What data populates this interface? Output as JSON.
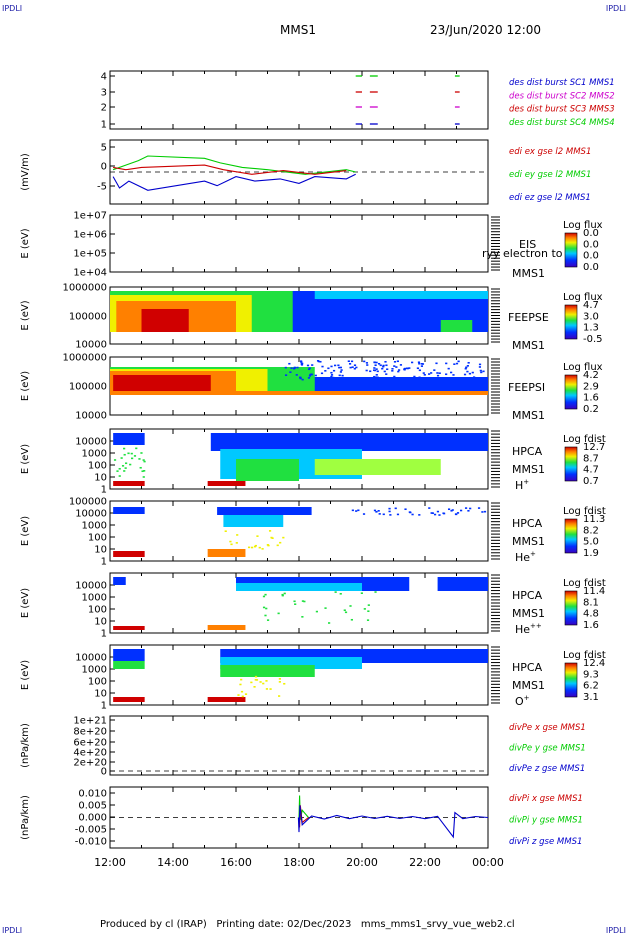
{
  "header": {
    "corner_label": "IPDLI",
    "spacecraft": "MMS1",
    "datetime": "23/Jun/2020 12:00"
  },
  "footer": {
    "produced_by": "Produced by cl (IRAP)",
    "printing_date": "Printing date: 02/Dec/2023",
    "filename": "mms_mms1_srvy_vue_web2.cl"
  },
  "chart_data": {
    "type": "multi-panel time series",
    "x_ticks": [
      "12:00",
      "14:00",
      "16:00",
      "18:00",
      "20:00",
      "22:00",
      "00:00"
    ],
    "x_range_hours": [
      12,
      24
    ],
    "panels": [
      {
        "id": "burst",
        "type": "scatter",
        "yticks": [
          "4",
          "3",
          "2",
          "1"
        ],
        "ylim": [
          0.5,
          4.5
        ],
        "legend": [
          {
            "label": "des dist burst SC1 MMS1",
            "color": "#0000cc"
          },
          {
            "label": "des dist burst SC2 MMS2",
            "color": "#cc00cc"
          },
          {
            "label": "des dist burst SC3 MMS3",
            "color": "#cc0000"
          },
          {
            "label": "des dist burst SC4 MMS4",
            "color": "#00cc00"
          }
        ],
        "segments": [
          {
            "level": 4,
            "t": [
              19.8,
              20.0
            ],
            "color": "#00cc00"
          },
          {
            "level": 4,
            "t": [
              20.25,
              20.5
            ],
            "color": "#00cc00"
          },
          {
            "level": 4,
            "t": [
              22.95,
              23.1
            ],
            "color": "#00cc00"
          },
          {
            "level": 3,
            "t": [
              19.8,
              20.0
            ],
            "color": "#cc0000"
          },
          {
            "level": 3,
            "t": [
              20.25,
              20.5
            ],
            "color": "#cc0000"
          },
          {
            "level": 3,
            "t": [
              22.95,
              23.1
            ],
            "color": "#cc0000"
          },
          {
            "level": 2,
            "t": [
              19.8,
              20.0
            ],
            "color": "#cc00cc"
          },
          {
            "level": 2,
            "t": [
              20.25,
              20.5
            ],
            "color": "#cc00cc"
          },
          {
            "level": 2,
            "t": [
              22.95,
              23.1
            ],
            "color": "#cc00cc"
          },
          {
            "level": 1,
            "t": [
              19.8,
              20.0
            ],
            "color": "#0000cc"
          },
          {
            "level": 1,
            "t": [
              20.25,
              20.5
            ],
            "color": "#0000cc"
          },
          {
            "level": 1,
            "t": [
              22.95,
              23.1
            ],
            "color": "#0000cc"
          }
        ]
      },
      {
        "id": "edi",
        "type": "line",
        "ylabel": "(mV/m)",
        "yticks": [
          "5",
          "0",
          "-5"
        ],
        "ylim": [
          -7,
          7
        ],
        "legend": [
          {
            "label": "edi ex gse l2 MMS1",
            "color": "#cc0000"
          },
          {
            "label": "edi ey gse l2 MMS1",
            "color": "#00cc00"
          },
          {
            "label": "edi ez gse l2 MMS1",
            "color": "#0000cc"
          }
        ],
        "series": [
          {
            "color": "#00cc00",
            "points": [
              [
                12.1,
                0.5
              ],
              [
                12.5,
                1.5
              ],
              [
                12.9,
                2.5
              ],
              [
                13.2,
                3.5
              ],
              [
                15.0,
                3.0
              ],
              [
                15.5,
                2.0
              ],
              [
                16.2,
                1.0
              ],
              [
                17.0,
                0.5
              ],
              [
                18.2,
                -0.5
              ],
              [
                19.5,
                0.5
              ],
              [
                19.8,
                0.0
              ]
            ]
          },
          {
            "color": "#cc0000",
            "points": [
              [
                12.1,
                1.0
              ],
              [
                12.5,
                0.5
              ],
              [
                13.0,
                1.0
              ],
              [
                15.0,
                1.5
              ],
              [
                15.6,
                0.5
              ],
              [
                16.5,
                -0.5
              ],
              [
                17.5,
                0.3
              ],
              [
                18.5,
                -0.5
              ],
              [
                19.5,
                0.3
              ]
            ]
          },
          {
            "color": "#0000cc",
            "points": [
              [
                12.1,
                -1.0
              ],
              [
                12.3,
                -3.5
              ],
              [
                12.6,
                -2.0
              ],
              [
                13.2,
                -4.0
              ],
              [
                15.0,
                -2.0
              ],
              [
                15.4,
                -3.0
              ],
              [
                16.0,
                -1.0
              ],
              [
                16.6,
                -2.0
              ],
              [
                17.4,
                -1.5
              ],
              [
                18.0,
                -2.5
              ],
              [
                18.5,
                -1.0
              ],
              [
                19.5,
                -1.5
              ],
              [
                19.8,
                -0.5
              ]
            ]
          }
        ]
      },
      {
        "id": "eis",
        "type": "heatmap",
        "ylabel": "E (eV)",
        "yticks": [
          "1e+07",
          "1e+06",
          "1e+05",
          "1e+04"
        ],
        "instrument": "EIS",
        "product": "ryy electron to",
        "sc": "MMS1",
        "cbar_title": "Log flux",
        "cbar_ticks": [
          "0.0",
          "0.0",
          "0.0",
          "0.0"
        ],
        "empty": true
      },
      {
        "id": "feepse",
        "type": "heatmap",
        "ylabel": "E (eV)",
        "yticks": [
          "1000000",
          "100000",
          "10000"
        ],
        "instrument": "FEEPSE",
        "sc": "MMS1",
        "cbar_title": "Log flux",
        "cbar_ticks": [
          "4.7",
          "3.0",
          "1.3",
          "-0.5"
        ]
      },
      {
        "id": "feepsi",
        "type": "heatmap",
        "ylabel": "E (eV)",
        "yticks": [
          "1000000",
          "100000",
          "10000"
        ],
        "instrument": "FEEPSI",
        "sc": "MMS1",
        "cbar_title": "Log flux",
        "cbar_ticks": [
          "4.2",
          "2.9",
          "1.6",
          "0.2"
        ]
      },
      {
        "id": "hpca_h",
        "type": "heatmap",
        "ylabel": "E (eV)",
        "yticks": [
          "10000",
          "1000",
          "100",
          "10",
          "1"
        ],
        "instrument": "HPCA",
        "sc": "MMS1",
        "species": "H",
        "charge": "+",
        "cbar_title": "Log fdist",
        "cbar_ticks": [
          "12.7",
          "8.7",
          "4.7",
          "0.7"
        ]
      },
      {
        "id": "hpca_he",
        "type": "heatmap",
        "ylabel": "E (eV)",
        "yticks": [
          "100000",
          "10000",
          "1000",
          "100",
          "10",
          "1"
        ],
        "instrument": "HPCA",
        "sc": "MMS1",
        "species": "He",
        "charge": "+",
        "cbar_title": "Log fdist",
        "cbar_ticks": [
          "11.3",
          "8.2",
          "5.0",
          "1.9"
        ]
      },
      {
        "id": "hpca_he2",
        "type": "heatmap",
        "ylabel": "E (eV)",
        "yticks": [
          "10000",
          "1000",
          "100",
          "10",
          "1"
        ],
        "instrument": "HPCA",
        "sc": "MMS1",
        "species": "He",
        "charge": "++",
        "cbar_title": "Log fdist",
        "cbar_ticks": [
          "11.4",
          "8.1",
          "4.8",
          "1.6"
        ]
      },
      {
        "id": "hpca_o",
        "type": "heatmap",
        "ylabel": "E (eV)",
        "yticks": [
          "10000",
          "1000",
          "100",
          "10",
          "1"
        ],
        "instrument": "HPCA",
        "sc": "MMS1",
        "species": "O",
        "charge": "+",
        "cbar_title": "Log fdist",
        "cbar_ticks": [
          "12.4",
          "9.3",
          "6.2",
          "3.1"
        ]
      },
      {
        "id": "divpe",
        "type": "line",
        "ylabel": "(nPa/km)",
        "yticks": [
          "1e+21",
          "8e+20",
          "6e+20",
          "4e+20",
          "2e+20",
          "0"
        ],
        "ylim": [
          0,
          1e+21
        ],
        "legend": [
          {
            "label": "divPe x gse MMS1",
            "color": "#cc0000"
          },
          {
            "label": "divPe y gse MMS1",
            "color": "#00cc00"
          },
          {
            "label": "divPe z gse MMS1",
            "color": "#0000cc"
          }
        ],
        "empty": true
      },
      {
        "id": "divpi",
        "type": "line",
        "ylabel": "(nPa/km)",
        "yticks": [
          "0.010",
          "0.005",
          "0.000",
          "-0.005",
          "-0.010"
        ],
        "ylim": [
          -0.0125,
          0.0125
        ],
        "legend": [
          {
            "label": "divPi x gse MMS1",
            "color": "#cc0000"
          },
          {
            "label": "divPi y gse MMS1",
            "color": "#00cc00"
          },
          {
            "label": "divPi z gse MMS1",
            "color": "#0000cc"
          }
        ],
        "series": [
          {
            "color": "#00cc00",
            "points": [
              [
                18.0,
                0.0
              ],
              [
                18.02,
                0.009
              ],
              [
                18.04,
                -0.001
              ],
              [
                18.1,
                0.003
              ],
              [
                18.3,
                0.0
              ]
            ]
          },
          {
            "color": "#cc0000",
            "points": [
              [
                18.0,
                0.0
              ],
              [
                18.02,
                -0.004
              ],
              [
                18.04,
                0.005
              ],
              [
                18.1,
                -0.002
              ],
              [
                18.3,
                0.0
              ]
            ]
          },
          {
            "color": "#0000cc",
            "points": [
              [
                17.98,
                0.0
              ],
              [
                18.0,
                -0.006
              ],
              [
                18.03,
                0.005
              ],
              [
                18.1,
                -0.003
              ],
              [
                18.4,
                0.0006
              ],
              [
                18.8,
                -0.0006
              ],
              [
                19.2,
                0.0008
              ],
              [
                19.6,
                -0.0005
              ],
              [
                20.0,
                0.0006
              ],
              [
                20.4,
                -0.0004
              ],
              [
                20.8,
                0.0005
              ],
              [
                21.2,
                -0.0004
              ],
              [
                21.6,
                0.0004
              ],
              [
                22.0,
                -0.0005
              ],
              [
                22.4,
                0.0005
              ],
              [
                22.9,
                -0.008
              ],
              [
                22.95,
                0.002
              ],
              [
                23.2,
                -0.0005
              ],
              [
                23.6,
                0.0004
              ],
              [
                24.0,
                0.0
              ]
            ]
          }
        ]
      }
    ]
  }
}
